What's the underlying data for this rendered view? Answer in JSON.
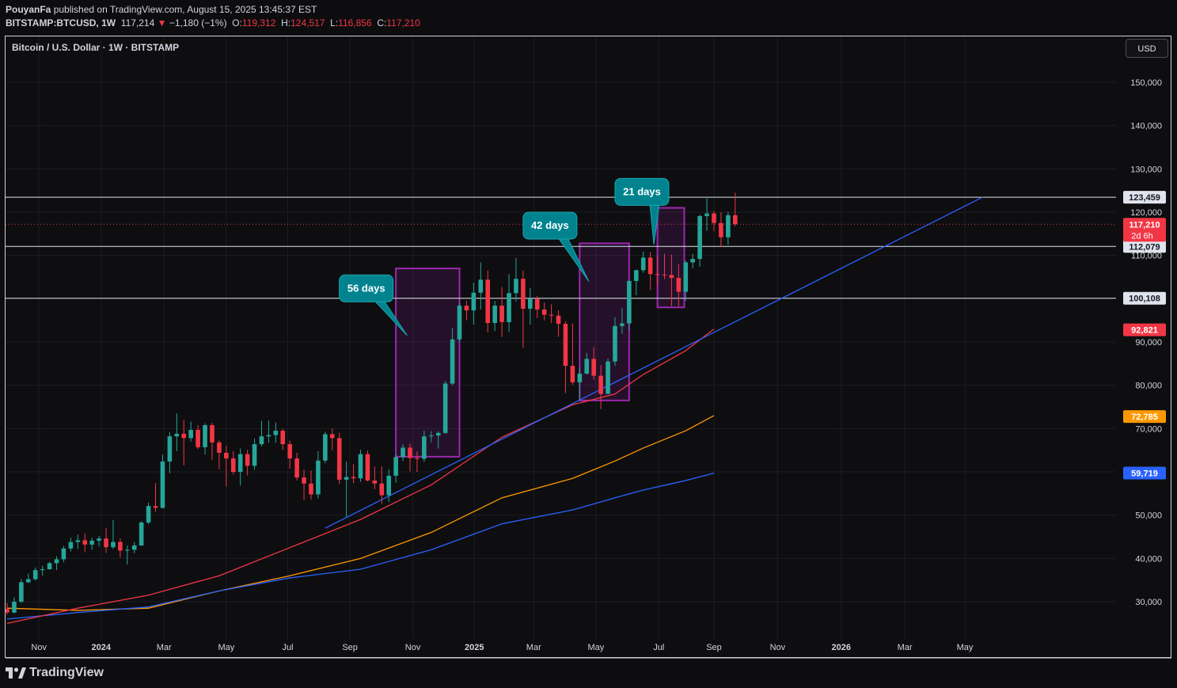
{
  "header": {
    "publisher": "PouyanFa",
    "published_text": "published on TradingView.com, August 15, 2025 13:45:37 EST",
    "symbol": "BITSTAMP:BTCUSD, 1W",
    "last": "117,214",
    "change": "−1,180 (−1%)",
    "o_label": "O:",
    "o": "119,312",
    "h_label": "H:",
    "h": "124,517",
    "l_label": "L:",
    "l": "116,856",
    "c_label": "C:",
    "c": "117,210"
  },
  "pane_title": "Bitcoin / U.S. Dollar · 1W · BITSTAMP",
  "currency_button": "USD",
  "footer": {
    "brand": "TradingView",
    "logo": "tradingview-logo"
  },
  "colors": {
    "up": "#26a69a",
    "down": "#f23645",
    "ma_red": "#f23645",
    "ma_orange": "#ff9800",
    "ma_blue": "#2962ff",
    "trend": "#2962ff",
    "box": "#9c27b0",
    "callout": "#00838f"
  },
  "chart_data": {
    "type": "candlestick",
    "title": "Bitcoin / U.S. Dollar · 1W · BITSTAMP",
    "ylim": [
      21000,
      163000
    ],
    "y_ticks": [
      "30,000",
      "40,000",
      "50,000",
      "60,000",
      "70,000",
      "80,000",
      "90,000",
      "100,000",
      "110,000",
      "120,000",
      "130,000",
      "140,000",
      "150,000"
    ],
    "y_tick_values": [
      30000,
      40000,
      50000,
      60000,
      70000,
      80000,
      90000,
      100000,
      110000,
      120000,
      130000,
      140000,
      150000
    ],
    "x_ticks": [
      "Nov",
      "2024",
      "Mar",
      "May",
      "Jul",
      "Sep",
      "Nov",
      "2025",
      "Mar",
      "May",
      "Jul",
      "Sep",
      "Nov",
      "2026",
      "Mar",
      "May"
    ],
    "x_tick_weeks": [
      4.5,
      13.3,
      22.2,
      31,
      39.7,
      48.5,
      57.4,
      66.1,
      74.5,
      83.3,
      92.2,
      100,
      109,
      118,
      127,
      135.5
    ],
    "candles": [
      [
        28300,
        27500,
        29700,
        27000
      ],
      [
        27500,
        30000,
        31000,
        27300
      ],
      [
        30000,
        34500,
        35200,
        29700
      ],
      [
        34500,
        35200,
        36500,
        34300
      ],
      [
        35200,
        37300,
        37900,
        34900
      ],
      [
        37300,
        37500,
        38300,
        36000
      ],
      [
        37500,
        38900,
        39200,
        37400
      ],
      [
        38900,
        39800,
        40500,
        37300
      ],
      [
        39800,
        42300,
        42900,
        39100
      ],
      [
        42300,
        43800,
        44800,
        41600
      ],
      [
        43800,
        44200,
        45500,
        42200
      ],
      [
        44200,
        43200,
        45800,
        41500
      ],
      [
        43200,
        44100,
        44800,
        42000
      ],
      [
        44100,
        44600,
        45200,
        42800
      ],
      [
        44600,
        42600,
        47000,
        41300
      ],
      [
        42600,
        43800,
        48900,
        42200
      ],
      [
        43800,
        41800,
        44600,
        40200
      ],
      [
        41800,
        42000,
        43000,
        38600
      ],
      [
        42000,
        43000,
        43800,
        41200
      ],
      [
        43000,
        48300,
        48600,
        42900
      ],
      [
        48300,
        52100,
        52900,
        47900
      ],
      [
        52100,
        51700,
        57400,
        50800
      ],
      [
        51700,
        62400,
        64000,
        51500
      ],
      [
        62400,
        68200,
        69100,
        59700
      ],
      [
        68200,
        68800,
        73500,
        64800
      ],
      [
        68800,
        67800,
        72000,
        61500
      ],
      [
        67800,
        69700,
        71600,
        67000
      ],
      [
        69700,
        65700,
        70800,
        65300
      ],
      [
        65700,
        70800,
        71200,
        64000
      ],
      [
        70800,
        66800,
        71300,
        62800
      ],
      [
        66800,
        64400,
        67300,
        60600
      ],
      [
        64400,
        63100,
        66000,
        56600
      ],
      [
        63100,
        60000,
        64800,
        59400
      ],
      [
        60000,
        64100,
        65400,
        56800
      ],
      [
        64100,
        61400,
        65100,
        59200
      ],
      [
        61400,
        66400,
        67700,
        60500
      ],
      [
        66400,
        68200,
        71800,
        65900
      ],
      [
        68200,
        68500,
        71900,
        66700
      ],
      [
        68500,
        69500,
        71400,
        66700
      ],
      [
        69500,
        66400,
        70000,
        65100
      ],
      [
        66400,
        63100,
        67200,
        60700
      ],
      [
        63100,
        58700,
        64400,
        58000
      ],
      [
        58700,
        57300,
        60500,
        53500
      ],
      [
        57300,
        54800,
        60300,
        53600
      ],
      [
        54800,
        62600,
        64800,
        53900
      ],
      [
        62600,
        68700,
        69300,
        62000
      ],
      [
        68700,
        67800,
        70000,
        65000
      ],
      [
        67800,
        58200,
        69000,
        57200
      ],
      [
        58200,
        58800,
        62400,
        49600
      ],
      [
        58800,
        58500,
        61800,
        57400
      ],
      [
        58500,
        64100,
        65100,
        57700
      ],
      [
        64100,
        58000,
        64900,
        57800
      ],
      [
        58000,
        57300,
        61200,
        56000
      ],
      [
        57300,
        54600,
        61300,
        52600
      ],
      [
        54600,
        59100,
        60600,
        53000
      ],
      [
        59100,
        63400,
        64100,
        57500
      ],
      [
        63400,
        65600,
        66400,
        62500
      ],
      [
        65600,
        63200,
        66500,
        60100
      ],
      [
        63200,
        63000,
        64700,
        60000
      ],
      [
        63000,
        68200,
        69500,
        62300
      ],
      [
        68200,
        68400,
        69400,
        66800
      ],
      [
        68400,
        69000,
        69400,
        65400
      ],
      [
        69000,
        80400,
        81000,
        68800
      ],
      [
        80400,
        90600,
        93200,
        80000
      ],
      [
        90600,
        98400,
        99100,
        89900
      ],
      [
        98400,
        97300,
        99500,
        95000
      ],
      [
        97300,
        101400,
        103700,
        94000
      ],
      [
        101400,
        104400,
        108400,
        97500
      ],
      [
        104400,
        94400,
        106500,
        92200
      ],
      [
        94400,
        98400,
        99500,
        92500
      ],
      [
        98400,
        94600,
        102700,
        91200
      ],
      [
        94600,
        101300,
        105700,
        92300
      ],
      [
        101300,
        104600,
        109400,
        99400
      ],
      [
        104600,
        97700,
        106500,
        88700
      ],
      [
        97700,
        100000,
        102500,
        94000
      ],
      [
        100000,
        97500,
        100600,
        95500
      ],
      [
        97500,
        96300,
        99100,
        95000
      ],
      [
        96300,
        96100,
        98700,
        94400
      ],
      [
        96100,
        94200,
        97300,
        91200
      ],
      [
        94200,
        84500,
        94800,
        78200
      ],
      [
        84500,
        80700,
        94300,
        80100
      ],
      [
        80700,
        82700,
        84200,
        76600
      ],
      [
        82700,
        86100,
        87500,
        82500
      ],
      [
        86100,
        82200,
        88800,
        81300
      ],
      [
        82200,
        78000,
        84700,
        74500
      ],
      [
        78000,
        85500,
        86200,
        78400
      ],
      [
        85500,
        93700,
        95700,
        84500
      ],
      [
        93700,
        94300,
        97900,
        91900
      ],
      [
        94300,
        104100,
        104300,
        92800
      ],
      [
        104100,
        106600,
        106700,
        100800
      ],
      [
        106600,
        109500,
        110900,
        106000
      ],
      [
        109500,
        105700,
        110800,
        102000
      ],
      [
        105700,
        105600,
        109800,
        102900
      ],
      [
        105600,
        105500,
        110400,
        104500
      ],
      [
        105500,
        104800,
        110200,
        98300
      ],
      [
        104800,
        101600,
        108000,
        98300
      ],
      [
        101600,
        108400,
        108800,
        99500
      ],
      [
        108400,
        109200,
        110400,
        107000
      ],
      [
        109200,
        119100,
        119400,
        107400
      ],
      [
        119100,
        119700,
        123200,
        115700
      ],
      [
        119700,
        117500,
        120300,
        115600
      ],
      [
        117500,
        114200,
        120000,
        111900
      ],
      [
        114200,
        119300,
        120100,
        112500
      ],
      [
        119300,
        117210,
        124500,
        116800
      ]
    ],
    "ma_red": [
      [
        0,
        25000
      ],
      [
        10,
        28500
      ],
      [
        20,
        31500
      ],
      [
        30,
        36000
      ],
      [
        40,
        42500
      ],
      [
        50,
        49000
      ],
      [
        60,
        57000
      ],
      [
        70,
        68000
      ],
      [
        80,
        75500
      ],
      [
        86,
        78000
      ],
      [
        90,
        82500
      ],
      [
        96,
        88000
      ],
      [
        100,
        93000
      ]
    ],
    "ma_orange": [
      [
        0,
        28500
      ],
      [
        10,
        28000
      ],
      [
        20,
        28500
      ],
      [
        30,
        32500
      ],
      [
        40,
        36000
      ],
      [
        50,
        40000
      ],
      [
        60,
        46000
      ],
      [
        70,
        54000
      ],
      [
        80,
        58500
      ],
      [
        86,
        62500
      ],
      [
        90,
        65500
      ],
      [
        96,
        69500
      ],
      [
        100,
        73000
      ]
    ],
    "ma_blue": [
      [
        0,
        26000
      ],
      [
        10,
        27500
      ],
      [
        20,
        28800
      ],
      [
        30,
        32500
      ],
      [
        40,
        35500
      ],
      [
        50,
        37500
      ],
      [
        60,
        42000
      ],
      [
        70,
        48000
      ],
      [
        80,
        51200
      ],
      [
        86,
        54000
      ],
      [
        90,
        55800
      ],
      [
        96,
        58000
      ],
      [
        100,
        59700
      ]
    ],
    "trendline": [
      [
        45,
        47000
      ],
      [
        138,
        123459
      ]
    ],
    "horizontal_levels": [
      {
        "value": 123459,
        "label": "123,459"
      },
      {
        "value": 112079,
        "label": "112,079"
      },
      {
        "value": 100108,
        "label": "100,108"
      }
    ],
    "last_price": {
      "value": 117210,
      "label": "117,210",
      "countdown": "2d 6h"
    },
    "price_tags": [
      {
        "value": 92821,
        "label": "92,821",
        "color": "#f23645"
      },
      {
        "value": 72785,
        "label": "72,785",
        "color": "#ff9800"
      },
      {
        "value": 59719,
        "label": "59,719",
        "color": "#2962ff"
      }
    ],
    "boxes": [
      {
        "from_week": 55,
        "to_week": 64,
        "low": 63500,
        "high": 107000
      },
      {
        "from_week": 81,
        "to_week": 88,
        "low": 76500,
        "high": 112800
      },
      {
        "from_week": 92,
        "to_week": 95.8,
        "low": 98000,
        "high": 121000
      }
    ],
    "callouts": [
      {
        "text": "56 days",
        "week": 47,
        "value": 105500,
        "target_week": 56.6,
        "target_value": 91500
      },
      {
        "text": "42 days",
        "week": 73,
        "value": 120000,
        "target_week": 82.3,
        "target_value": 104000
      },
      {
        "text": "21 days",
        "week": 86,
        "value": 127800,
        "target_week": 91.5,
        "target_value": 112500
      }
    ]
  }
}
